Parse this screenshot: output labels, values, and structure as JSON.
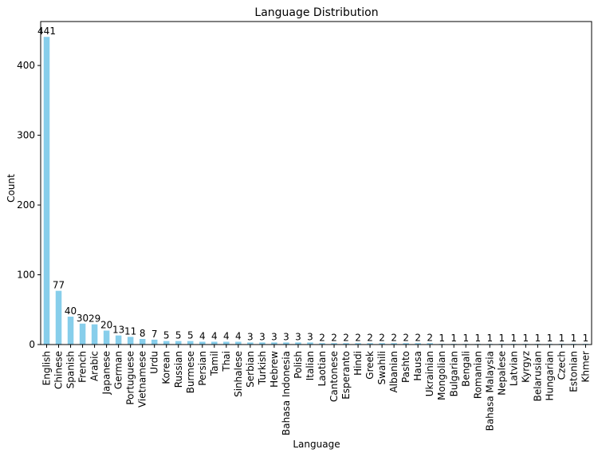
{
  "chart_data": {
    "type": "bar",
    "title": "Language Distribution",
    "xlabel": "Language",
    "ylabel": "Count",
    "ylim": [
      0,
      463
    ],
    "yticks": [
      0,
      100,
      200,
      300,
      400
    ],
    "grid": false,
    "legend": "none",
    "bar_color": "#87CEEB",
    "categories": [
      "English",
      "Chinese",
      "Spanish",
      "French",
      "Arabic",
      "Japanese",
      "German",
      "Portuguese",
      "Vietnamese",
      "Urdu",
      "Korean",
      "Russian",
      "Burmese",
      "Persian",
      "Tamil",
      "Thai",
      "Sinhalese",
      "Serbian",
      "Turkish",
      "Hebrew",
      "Bahasa Indonesia",
      "Polish",
      "Italian",
      "Laotian",
      "Cantonese",
      "Esperanto",
      "Hindi",
      "Greek",
      "Swahili",
      "Albanian",
      "Pashto",
      "Hausa",
      "Ukrainian",
      "Mongolian",
      "Bulgarian",
      "Bengali",
      "Romanian",
      "Bahasa Malaysia",
      "Nepalese",
      "Latvian",
      "Kyrgyz",
      "Belarusian",
      "Hungarian",
      "Czech",
      "Estonian",
      "Khmer"
    ],
    "values": [
      441,
      77,
      40,
      30,
      29,
      20,
      13,
      11,
      8,
      7,
      5,
      5,
      5,
      4,
      4,
      4,
      4,
      3,
      3,
      3,
      3,
      3,
      3,
      2,
      2,
      2,
      2,
      2,
      2,
      2,
      2,
      2,
      2,
      1,
      1,
      1,
      1,
      1,
      1,
      1,
      1,
      1,
      1,
      1,
      1,
      1
    ],
    "data_labels": [
      "441",
      "77",
      "40",
      "30",
      "29",
      "20",
      "13",
      "11",
      "8",
      "7",
      "5",
      "5",
      "5",
      "4",
      "4",
      "4",
      "4",
      "3",
      "3",
      "3",
      "3",
      "3",
      "3",
      "2",
      "2",
      "2",
      "2",
      "2",
      "2",
      "2",
      "2",
      "2",
      "2",
      "1",
      "1",
      "1",
      "1",
      "1",
      "1",
      "1",
      "1",
      "1",
      "1",
      "1",
      "1",
      "1"
    ],
    "ytick_labels": [
      "0",
      "100",
      "200",
      "300",
      "400"
    ]
  }
}
